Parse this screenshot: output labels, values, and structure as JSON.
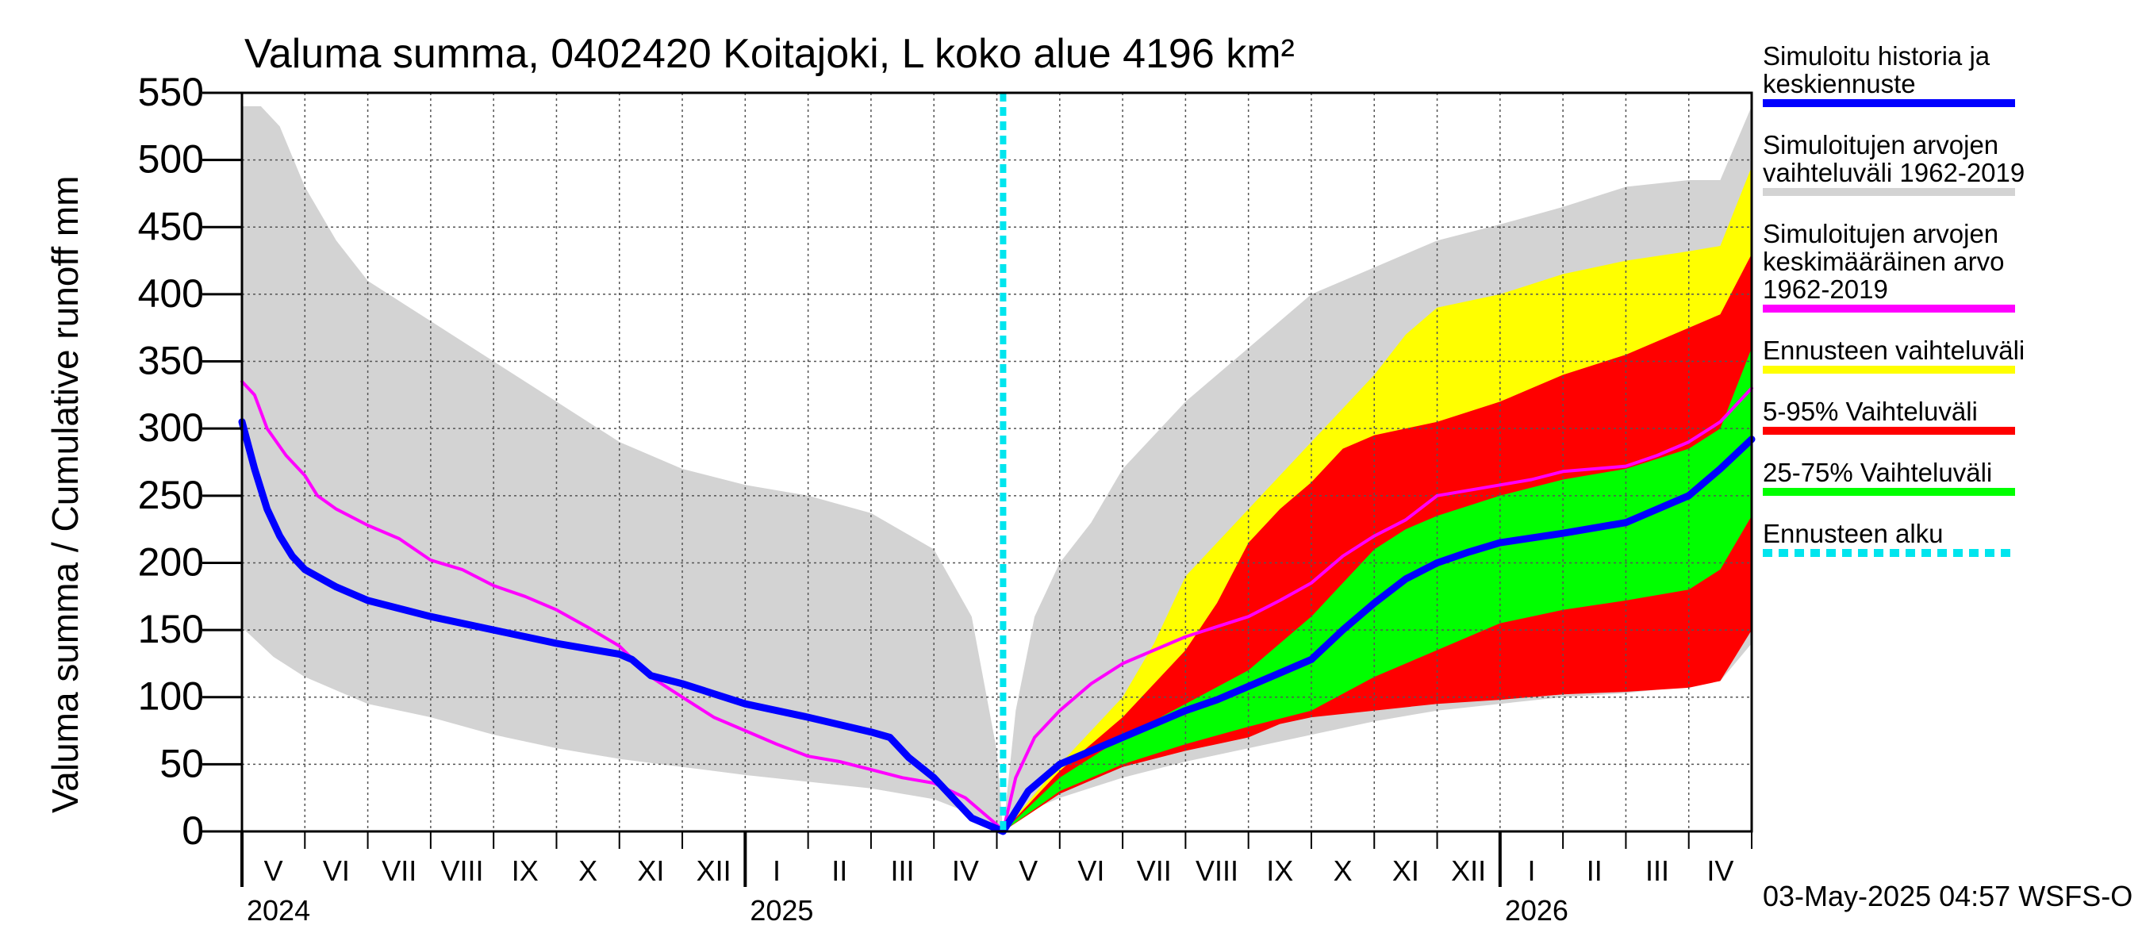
{
  "chart_data": {
    "type": "area",
    "title": "Valuma summa, 0402420 Koitajoki, L koko alue 4196 km²",
    "ylabel": "Valuma summa / Cumulative runoff    mm",
    "ylim": [
      0,
      550
    ],
    "yticks": [
      0,
      50,
      100,
      150,
      200,
      250,
      300,
      350,
      400,
      450,
      500,
      550
    ],
    "x_domain_months": [
      0,
      24
    ],
    "month_labels": [
      "V",
      "VI",
      "VII",
      "VIII",
      "IX",
      "X",
      "XI",
      "XII",
      "I",
      "II",
      "III",
      "IV",
      "V",
      "VI",
      "VII",
      "VIII",
      "IX",
      "X",
      "XI",
      "XII",
      "I",
      "II",
      "III",
      "IV"
    ],
    "year_labels": [
      {
        "label": "2024",
        "month": 0
      },
      {
        "label": "2025",
        "month": 8
      },
      {
        "label": "2026",
        "month": 20
      }
    ],
    "forecast_start_month": 12.1,
    "footer": "03-May-2025 04:57 WSFS-O",
    "legend": [
      {
        "key": "history",
        "label_lines": [
          "Simuloitu historia ja",
          "keskiennuste"
        ],
        "color": "#0000ff",
        "style": "line"
      },
      {
        "key": "range",
        "label_lines": [
          "Simuloitujen arvojen",
          "vaihteluväli 1962-2019"
        ],
        "color": "#d3d3d3",
        "style": "line"
      },
      {
        "key": "mean",
        "label_lines": [
          "Simuloitujen arvojen",
          "keskimääräinen arvo",
          "   1962-2019"
        ],
        "color": "#ff00ff",
        "style": "line"
      },
      {
        "key": "fc_range",
        "label_lines": [
          "Ennusteen vaihteluväli"
        ],
        "color": "#ffff00",
        "style": "line"
      },
      {
        "key": "p5_95",
        "label_lines": [
          "5-95% Vaihteluväli"
        ],
        "color": "#ff0000",
        "style": "line"
      },
      {
        "key": "p25_75",
        "label_lines": [
          "25-75% Vaihteluväli"
        ],
        "color": "#00ff00",
        "style": "line"
      },
      {
        "key": "fc_start",
        "label_lines": [
          "Ennusteen alku"
        ],
        "color": "#00e5ee",
        "style": "dashed"
      }
    ],
    "series": {
      "hist_band": {
        "name": "Simuloitujen arvojen vaihteluväli 1962-2019",
        "color": "#d3d3d3",
        "upper": [
          [
            0,
            540
          ],
          [
            0.3,
            540
          ],
          [
            0.6,
            525
          ],
          [
            1.0,
            480
          ],
          [
            1.5,
            440
          ],
          [
            2.0,
            410
          ],
          [
            2.5,
            395
          ],
          [
            3.0,
            380
          ],
          [
            4.0,
            350
          ],
          [
            5.0,
            320
          ],
          [
            6.0,
            290
          ],
          [
            7.0,
            270
          ],
          [
            8.0,
            258
          ],
          [
            9.0,
            250
          ],
          [
            10.0,
            237
          ],
          [
            11.0,
            210
          ],
          [
            11.6,
            160
          ],
          [
            12.0,
            60
          ],
          [
            12.1,
            0
          ]
        ],
        "lower": [
          [
            0,
            152
          ],
          [
            0.5,
            130
          ],
          [
            1.0,
            115
          ],
          [
            2.0,
            95
          ],
          [
            3.0,
            85
          ],
          [
            4.0,
            72
          ],
          [
            5.0,
            62
          ],
          [
            6.0,
            54
          ],
          [
            7.0,
            48
          ],
          [
            8.0,
            42
          ],
          [
            9.0,
            37
          ],
          [
            10.0,
            32
          ],
          [
            11.0,
            24
          ],
          [
            11.6,
            13
          ],
          [
            12.1,
            0
          ]
        ],
        "f_upper": [
          [
            12.1,
            0
          ],
          [
            12.3,
            90
          ],
          [
            12.6,
            160
          ],
          [
            13.0,
            200
          ],
          [
            13.5,
            230
          ],
          [
            14.0,
            270
          ],
          [
            15.0,
            320
          ],
          [
            16.0,
            360
          ],
          [
            17.0,
            400
          ],
          [
            18.0,
            420
          ],
          [
            19.0,
            440
          ],
          [
            20.0,
            452
          ],
          [
            21.0,
            465
          ],
          [
            22.0,
            480
          ],
          [
            23.0,
            485
          ],
          [
            23.5,
            485
          ],
          [
            24.0,
            540
          ]
        ],
        "f_lower": [
          [
            12.1,
            0
          ],
          [
            12.5,
            15
          ],
          [
            13.0,
            25
          ],
          [
            14.0,
            40
          ],
          [
            15.0,
            52
          ],
          [
            16.0,
            62
          ],
          [
            17.0,
            72
          ],
          [
            18.0,
            82
          ],
          [
            19.0,
            90
          ],
          [
            20.0,
            95
          ],
          [
            21.0,
            100
          ],
          [
            22.0,
            103
          ],
          [
            23.0,
            108
          ],
          [
            23.5,
            112
          ],
          [
            24.0,
            140
          ]
        ]
      },
      "fc_range": {
        "name": "Ennusteen vaihteluväli",
        "color": "#ffff00",
        "upper": [
          [
            12.1,
            0
          ],
          [
            13.0,
            50
          ],
          [
            14.0,
            100
          ],
          [
            14.5,
            140
          ],
          [
            15.0,
            190
          ],
          [
            16.0,
            240
          ],
          [
            17.0,
            290
          ],
          [
            18.0,
            340
          ],
          [
            18.5,
            370
          ],
          [
            19.0,
            390
          ],
          [
            20.0,
            400
          ],
          [
            21.0,
            415
          ],
          [
            22.0,
            425
          ],
          [
            23.0,
            432
          ],
          [
            23.5,
            436
          ],
          [
            24.0,
            495
          ]
        ],
        "lower": [
          [
            12.1,
            0
          ],
          [
            13.0,
            28
          ],
          [
            14.0,
            50
          ],
          [
            15.0,
            60
          ],
          [
            16.0,
            72
          ],
          [
            16.5,
            80
          ],
          [
            17.0,
            86
          ],
          [
            18.0,
            92
          ],
          [
            19.0,
            97
          ],
          [
            20.0,
            100
          ],
          [
            21.0,
            103
          ],
          [
            22.0,
            106
          ],
          [
            23.0,
            108
          ],
          [
            23.5,
            112
          ],
          [
            24.0,
            160
          ]
        ]
      },
      "p5_95": {
        "name": "5-95% Vaihteluväli",
        "color": "#ff0000",
        "upper": [
          [
            12.1,
            0
          ],
          [
            13.0,
            45
          ],
          [
            14.0,
            85
          ],
          [
            15.0,
            135
          ],
          [
            15.5,
            170
          ],
          [
            16.0,
            215
          ],
          [
            16.5,
            240
          ],
          [
            17.0,
            260
          ],
          [
            17.5,
            285
          ],
          [
            18.0,
            295
          ],
          [
            19.0,
            305
          ],
          [
            20.0,
            320
          ],
          [
            21.0,
            340
          ],
          [
            22.0,
            355
          ],
          [
            23.0,
            375
          ],
          [
            23.5,
            385
          ],
          [
            24.0,
            430
          ]
        ],
        "lower": [
          [
            12.1,
            0
          ],
          [
            13.0,
            28
          ],
          [
            14.0,
            48
          ],
          [
            15.0,
            60
          ],
          [
            16.0,
            70
          ],
          [
            16.5,
            80
          ],
          [
            17.0,
            85
          ],
          [
            18.0,
            90
          ],
          [
            19.0,
            95
          ],
          [
            20.0,
            98
          ],
          [
            21.0,
            102
          ],
          [
            22.0,
            104
          ],
          [
            23.0,
            107
          ],
          [
            23.5,
            112
          ],
          [
            24.0,
            150
          ]
        ]
      },
      "p25_75": {
        "name": "25-75% Vaihteluväli",
        "color": "#00ff00",
        "upper": [
          [
            12.1,
            0
          ],
          [
            13.0,
            40
          ],
          [
            14.0,
            70
          ],
          [
            15.0,
            95
          ],
          [
            16.0,
            120
          ],
          [
            17.0,
            160
          ],
          [
            18.0,
            210
          ],
          [
            18.5,
            225
          ],
          [
            19.0,
            235
          ],
          [
            20.0,
            250
          ],
          [
            21.0,
            262
          ],
          [
            22.0,
            270
          ],
          [
            23.0,
            285
          ],
          [
            23.5,
            300
          ],
          [
            24.0,
            360
          ]
        ],
        "lower": [
          [
            12.1,
            0
          ],
          [
            13.0,
            30
          ],
          [
            14.0,
            50
          ],
          [
            15.0,
            65
          ],
          [
            16.0,
            78
          ],
          [
            17.0,
            90
          ],
          [
            18.0,
            115
          ],
          [
            19.0,
            135
          ],
          [
            20.0,
            155
          ],
          [
            21.0,
            165
          ],
          [
            22.0,
            172
          ],
          [
            23.0,
            180
          ],
          [
            23.5,
            195
          ],
          [
            24.0,
            235
          ]
        ]
      },
      "mean": {
        "name": "Simuloitujen arvojen keskimääräinen arvo 1962-2019",
        "color": "#ff00ff",
        "points": [
          [
            0,
            335
          ],
          [
            0.2,
            325
          ],
          [
            0.4,
            300
          ],
          [
            0.7,
            280
          ],
          [
            1.0,
            265
          ],
          [
            1.2,
            250
          ],
          [
            1.5,
            240
          ],
          [
            2.0,
            228
          ],
          [
            2.5,
            218
          ],
          [
            3.0,
            202
          ],
          [
            3.5,
            195
          ],
          [
            4.0,
            183
          ],
          [
            4.5,
            175
          ],
          [
            5.0,
            165
          ],
          [
            5.5,
            152
          ],
          [
            6.0,
            138
          ],
          [
            6.5,
            115
          ],
          [
            7.0,
            100
          ],
          [
            7.5,
            85
          ],
          [
            8.0,
            75
          ],
          [
            8.5,
            65
          ],
          [
            9.0,
            56
          ],
          [
            9.5,
            52
          ],
          [
            10.0,
            46
          ],
          [
            10.5,
            40
          ],
          [
            11.0,
            36
          ],
          [
            11.5,
            25
          ],
          [
            12.0,
            5
          ],
          [
            12.1,
            0
          ],
          [
            12.3,
            40
          ],
          [
            12.6,
            70
          ],
          [
            13.0,
            90
          ],
          [
            13.5,
            110
          ],
          [
            14.0,
            125
          ],
          [
            14.5,
            135
          ],
          [
            15.0,
            145
          ],
          [
            16.0,
            160
          ],
          [
            16.5,
            172
          ],
          [
            17.0,
            185
          ],
          [
            17.5,
            205
          ],
          [
            18.0,
            220
          ],
          [
            18.5,
            232
          ],
          [
            19.0,
            250
          ],
          [
            20.0,
            258
          ],
          [
            20.5,
            262
          ],
          [
            21.0,
            268
          ],
          [
            22.0,
            272
          ],
          [
            22.5,
            280
          ],
          [
            23.0,
            290
          ],
          [
            23.5,
            305
          ],
          [
            24.0,
            330
          ]
        ]
      },
      "history": {
        "name": "Simuloitu historia ja keskiennuste",
        "color": "#0000ff",
        "points": [
          [
            0,
            305
          ],
          [
            0.2,
            270
          ],
          [
            0.4,
            240
          ],
          [
            0.6,
            220
          ],
          [
            0.8,
            205
          ],
          [
            1.0,
            195
          ],
          [
            1.5,
            182
          ],
          [
            2.0,
            172
          ],
          [
            3.0,
            160
          ],
          [
            4.0,
            150
          ],
          [
            5.0,
            140
          ],
          [
            6.0,
            132
          ],
          [
            6.2,
            128
          ],
          [
            6.5,
            116
          ],
          [
            7.0,
            110
          ],
          [
            8.0,
            95
          ],
          [
            9.0,
            85
          ],
          [
            10.0,
            74
          ],
          [
            10.3,
            70
          ],
          [
            10.6,
            55
          ],
          [
            11.0,
            40
          ],
          [
            11.3,
            25
          ],
          [
            11.6,
            10
          ],
          [
            12.1,
            0
          ],
          [
            12.5,
            30
          ],
          [
            13.0,
            50
          ],
          [
            13.5,
            60
          ],
          [
            14.0,
            70
          ],
          [
            14.5,
            80
          ],
          [
            15.0,
            90
          ],
          [
            15.5,
            98
          ],
          [
            16.0,
            108
          ],
          [
            16.5,
            118
          ],
          [
            17.0,
            128
          ],
          [
            17.5,
            150
          ],
          [
            18.0,
            170
          ],
          [
            18.5,
            188
          ],
          [
            19.0,
            200
          ],
          [
            19.5,
            208
          ],
          [
            20.0,
            215
          ],
          [
            21.0,
            222
          ],
          [
            22.0,
            230
          ],
          [
            22.5,
            240
          ],
          [
            23.0,
            250
          ],
          [
            23.5,
            270
          ],
          [
            24.0,
            292
          ]
        ]
      }
    }
  }
}
